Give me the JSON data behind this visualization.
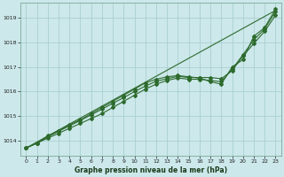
{
  "xlabel": "Graphe pression niveau de la mer (hPa)",
  "bg_color": "#cce8ea",
  "grid_color": "#aacfd2",
  "line_color": "#2d6a2d",
  "xlim": [
    -0.5,
    23.5
  ],
  "ylim": [
    1013.4,
    1019.6
  ],
  "yticks": [
    1014,
    1015,
    1016,
    1017,
    1018,
    1019
  ],
  "xticks": [
    0,
    1,
    2,
    3,
    4,
    5,
    6,
    7,
    8,
    9,
    10,
    11,
    12,
    13,
    14,
    15,
    16,
    17,
    18,
    19,
    20,
    21,
    22,
    23
  ],
  "line1_x": [
    0,
    1,
    2,
    3,
    4,
    5,
    6,
    7,
    8,
    9,
    10,
    11,
    12,
    13,
    14,
    15,
    16,
    17,
    18,
    19,
    20,
    21,
    22,
    23
  ],
  "line1_y": [
    1013.7,
    1013.9,
    1014.1,
    1014.3,
    1014.5,
    1014.7,
    1014.9,
    1015.1,
    1015.35,
    1015.6,
    1015.85,
    1016.1,
    1016.3,
    1016.45,
    1016.55,
    1016.5,
    1016.5,
    1016.45,
    1016.4,
    1016.9,
    1017.5,
    1018.1,
    1018.55,
    1019.25
  ],
  "line2_x": [
    0,
    1,
    2,
    3,
    4,
    5,
    6,
    7,
    8,
    9,
    10,
    11,
    12,
    13,
    14,
    15,
    16,
    17,
    18,
    19,
    20,
    21,
    22,
    23
  ],
  "line2_y": [
    1013.7,
    1013.9,
    1014.2,
    1014.4,
    1014.65,
    1014.85,
    1015.1,
    1015.35,
    1015.6,
    1015.85,
    1016.1,
    1016.35,
    1016.5,
    1016.6,
    1016.65,
    1016.6,
    1016.55,
    1016.4,
    1016.3,
    1017.0,
    1017.3,
    1018.25,
    1018.6,
    1019.35
  ],
  "line3_x": [
    0,
    1,
    2,
    3,
    4,
    5,
    6,
    7,
    8,
    9,
    10,
    11,
    12,
    13,
    14,
    15,
    16,
    17,
    18,
    19,
    20,
    21,
    22,
    23
  ],
  "line3_y": [
    1013.7,
    1013.9,
    1014.15,
    1014.38,
    1014.6,
    1014.82,
    1015.05,
    1015.28,
    1015.52,
    1015.75,
    1016.0,
    1016.22,
    1016.42,
    1016.52,
    1016.62,
    1016.57,
    1016.57,
    1016.57,
    1016.52,
    1016.85,
    1017.45,
    1017.95,
    1018.45,
    1019.1
  ],
  "line4_x": [
    0,
    23
  ],
  "line4_y": [
    1013.7,
    1019.3
  ]
}
